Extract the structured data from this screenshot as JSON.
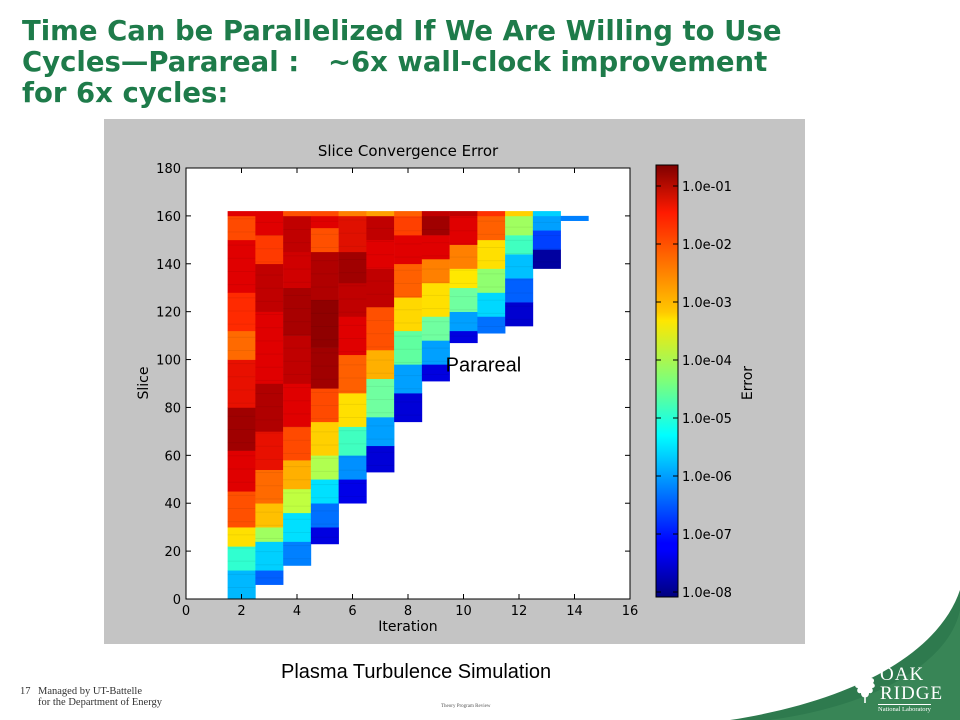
{
  "slide": {
    "title_lines": [
      "Time Can be Parallelized If We Are Willing to Use",
      "Cycles—Parareal :   ~6x wall-clock improvement",
      "for 6x cycles:"
    ],
    "caption": "Plasma Turbulence Simulation",
    "footer": {
      "page_number": "17",
      "managed_by_line1": "Managed by UT-Battelle",
      "managed_by_line2": "for the Department of Energy",
      "center_text": "Theory Program Review"
    },
    "logo": {
      "oak": "OAK",
      "ridge": "RIDGE",
      "lab": "National Laboratory",
      "icon": "oak-leaf-icon"
    },
    "colors": {
      "title": "#1e7b4a",
      "panel_bg": "#c4c4c4",
      "corner_green": "#2e7a4e"
    }
  },
  "chart_data": {
    "type": "heatmap",
    "title": "Slice Convergence Error",
    "xlabel": "Iteration",
    "ylabel": "Slice",
    "xlim": [
      0,
      16
    ],
    "ylim": [
      0,
      180
    ],
    "xticks": [
      0,
      2,
      4,
      6,
      8,
      10,
      12,
      14,
      16
    ],
    "yticks": [
      0,
      20,
      40,
      60,
      80,
      100,
      120,
      140,
      160,
      180
    ],
    "colorbar": {
      "label": "Error",
      "scale": "log",
      "range": [
        1e-08,
        0.1
      ],
      "tick_labels": [
        "1.0e-01",
        "1.0e-02",
        "1.0e-03",
        "1.0e-04",
        "1.0e-05",
        "1.0e-06",
        "1.0e-07",
        "1.0e-08"
      ],
      "colormap": "jet"
    },
    "annotation": {
      "text": "Parareal",
      "x": 9.5,
      "y": 98
    },
    "slice_max": 160,
    "columns": [
      {
        "iteration": 2,
        "slice_from": 2,
        "colors": [
          [
            0,
            "#00b8ff"
          ],
          [
            12,
            "#30ffd0"
          ],
          [
            22,
            "#ffe000"
          ],
          [
            30,
            "#ff5000"
          ],
          [
            45,
            "#e00000"
          ],
          [
            62,
            "#a00000"
          ],
          [
            80,
            "#e81000"
          ],
          [
            100,
            "#ff6a00"
          ],
          [
            112,
            "#ff2a00"
          ],
          [
            128,
            "#e00000"
          ],
          [
            150,
            "#ff4a00"
          ],
          [
            160,
            "#e00000"
          ]
        ]
      },
      {
        "iteration": 3,
        "slice_from": 6,
        "colors": [
          [
            6,
            "#0060ff"
          ],
          [
            12,
            "#00d0ff"
          ],
          [
            24,
            "#a0ff60"
          ],
          [
            30,
            "#ffc000"
          ],
          [
            40,
            "#ff6a00"
          ],
          [
            54,
            "#e81000"
          ],
          [
            70,
            "#b00000"
          ],
          [
            90,
            "#e00000"
          ],
          [
            120,
            "#c00000"
          ],
          [
            140,
            "#ff3a00"
          ],
          [
            152,
            "#e00000"
          ],
          [
            160,
            "#e00000"
          ]
        ]
      },
      {
        "iteration": 4,
        "slice_from": 14,
        "colors": [
          [
            14,
            "#0080ff"
          ],
          [
            24,
            "#00e0ff"
          ],
          [
            36,
            "#c0ff40"
          ],
          [
            46,
            "#ffb000"
          ],
          [
            58,
            "#ff4a00"
          ],
          [
            72,
            "#e00000"
          ],
          [
            90,
            "#c00000"
          ],
          [
            110,
            "#a80000"
          ],
          [
            130,
            "#d00000"
          ],
          [
            145,
            "#c00000"
          ],
          [
            160,
            "#ff5000"
          ]
        ]
      },
      {
        "iteration": 5,
        "slice_from": 23,
        "colors": [
          [
            23,
            "#0000e0"
          ],
          [
            30,
            "#0070ff"
          ],
          [
            40,
            "#00e0ff"
          ],
          [
            50,
            "#b0ff50"
          ],
          [
            60,
            "#ffd000"
          ],
          [
            74,
            "#ff4a00"
          ],
          [
            88,
            "#a00000"
          ],
          [
            105,
            "#900000"
          ],
          [
            125,
            "#b00000"
          ],
          [
            145,
            "#ff5000"
          ],
          [
            155,
            "#e00000"
          ],
          [
            160,
            "#ff4a00"
          ]
        ]
      },
      {
        "iteration": 6,
        "slice_from": 40,
        "colors": [
          [
            40,
            "#0000e8"
          ],
          [
            50,
            "#0090ff"
          ],
          [
            60,
            "#40ffc0"
          ],
          [
            72,
            "#ffe000"
          ],
          [
            86,
            "#ff6000"
          ],
          [
            102,
            "#e00000"
          ],
          [
            118,
            "#c00000"
          ],
          [
            132,
            "#a00000"
          ],
          [
            145,
            "#e01000"
          ],
          [
            160,
            "#ff8000"
          ]
        ]
      },
      {
        "iteration": 7,
        "slice_from": 53,
        "colors": [
          [
            53,
            "#0000d8"
          ],
          [
            64,
            "#00a0ff"
          ],
          [
            76,
            "#70ffa0"
          ],
          [
            92,
            "#ffb000"
          ],
          [
            104,
            "#ff5000"
          ],
          [
            122,
            "#c00000"
          ],
          [
            138,
            "#e00000"
          ],
          [
            150,
            "#c00000"
          ],
          [
            160,
            "#ffa000"
          ]
        ]
      },
      {
        "iteration": 8,
        "slice_from": 74,
        "colors": [
          [
            74,
            "#0000d8"
          ],
          [
            86,
            "#00a0ff"
          ],
          [
            98,
            "#60ffa0"
          ],
          [
            112,
            "#ffd800"
          ],
          [
            126,
            "#ff6000"
          ],
          [
            140,
            "#e00000"
          ],
          [
            152,
            "#ff4000"
          ],
          [
            160,
            "#ff6000"
          ]
        ]
      },
      {
        "iteration": 9,
        "slice_from": 91,
        "colors": [
          [
            91,
            "#0000e0"
          ],
          [
            98,
            "#00a0ff"
          ],
          [
            108,
            "#70ffa0"
          ],
          [
            118,
            "#ffe000"
          ],
          [
            132,
            "#ff8000"
          ],
          [
            142,
            "#e00000"
          ],
          [
            152,
            "#a00000"
          ],
          [
            160,
            "#c00000"
          ]
        ]
      },
      {
        "iteration": 10,
        "slice_from": 107,
        "colors": [
          [
            107,
            "#0000e0"
          ],
          [
            112,
            "#00a0ff"
          ],
          [
            120,
            "#70ffa0"
          ],
          [
            130,
            "#ffe800"
          ],
          [
            138,
            "#ff8000"
          ],
          [
            148,
            "#e00000"
          ],
          [
            160,
            "#c00000"
          ]
        ]
      },
      {
        "iteration": 11,
        "slice_from": 111,
        "colors": [
          [
            111,
            "#0070ff"
          ],
          [
            118,
            "#00d8ff"
          ],
          [
            128,
            "#90ff70"
          ],
          [
            138,
            "#ffe000"
          ],
          [
            150,
            "#ff6000"
          ],
          [
            160,
            "#ff3000"
          ]
        ]
      },
      {
        "iteration": 12,
        "slice_from": 114,
        "colors": [
          [
            114,
            "#0000d0"
          ],
          [
            124,
            "#0060ff"
          ],
          [
            134,
            "#00c0ff"
          ],
          [
            144,
            "#40ffc0"
          ],
          [
            152,
            "#a0ff60"
          ],
          [
            160,
            "#ffd000"
          ]
        ]
      },
      {
        "iteration": 13,
        "slice_from": 138,
        "colors": [
          [
            138,
            "#0000a0"
          ],
          [
            146,
            "#0040ff"
          ],
          [
            154,
            "#00a0ff"
          ],
          [
            160,
            "#00d0ff"
          ]
        ]
      },
      {
        "iteration": 14,
        "slice_from": 158,
        "colors": [
          [
            158,
            "#0080ff"
          ]
        ]
      }
    ]
  }
}
